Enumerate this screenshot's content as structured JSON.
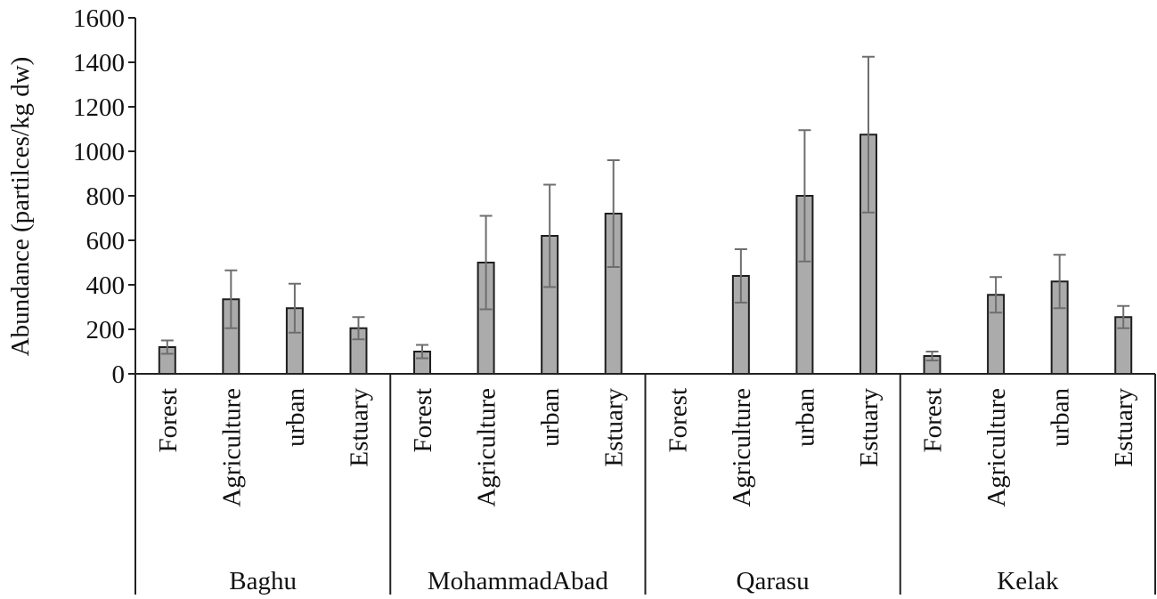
{
  "chart_data": {
    "type": "bar",
    "ylabel": "Abundance (partilces/kg dw)",
    "ylim": [
      0,
      1600
    ],
    "yticks": [
      0,
      200,
      400,
      600,
      800,
      1000,
      1200,
      1400,
      1600
    ],
    "grid": false,
    "groups": [
      {
        "name": "Baghu",
        "categories": [
          "Forest",
          "Agriculture",
          "urban",
          "Estuary"
        ],
        "values": [
          120,
          335,
          295,
          205
        ],
        "errors": [
          30,
          130,
          110,
          50
        ]
      },
      {
        "name": "MohammadAbad",
        "categories": [
          "Forest",
          "Agriculture",
          "urban",
          "Estuary"
        ],
        "values": [
          100,
          500,
          620,
          720
        ],
        "errors": [
          30,
          210,
          230,
          240
        ]
      },
      {
        "name": "Qarasu",
        "categories": [
          "Forest",
          "Agriculture",
          "urban",
          "Estuary"
        ],
        "values": [
          0,
          440,
          800,
          1075
        ],
        "errors": [
          0,
          120,
          295,
          350
        ]
      },
      {
        "name": "Kelak",
        "categories": [
          "Forest",
          "Agriculture",
          "urban",
          "Estuary"
        ],
        "values": [
          80,
          355,
          415,
          255
        ],
        "errors": [
          20,
          80,
          120,
          50
        ]
      }
    ],
    "colors": {
      "bar_fill": "#ababab",
      "bar_stroke": "#1e1e1e",
      "error_bar": "#6e6e6e"
    }
  }
}
